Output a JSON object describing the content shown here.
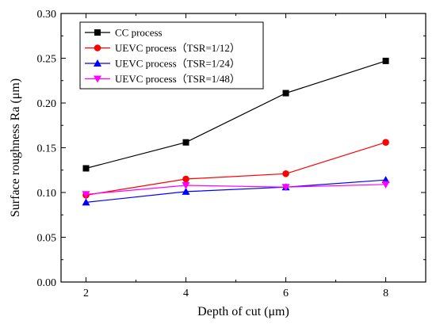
{
  "chart_data": {
    "type": "line",
    "xlabel": "Depth of cut (μm)",
    "ylabel": "Surface roughness Ra (μm)",
    "x": [
      2,
      4,
      6,
      8
    ],
    "xticks": [
      "2",
      "4",
      "6",
      "8"
    ],
    "xlim": [
      1.5,
      8.8
    ],
    "ylim": [
      0.0,
      0.3
    ],
    "yticks": [
      "0.00",
      "0.05",
      "0.10",
      "0.15",
      "0.20",
      "0.25",
      "0.30"
    ],
    "grid": false,
    "legend_position": "top-left",
    "series": [
      {
        "name": "CC process",
        "values": [
          0.127,
          0.156,
          0.211,
          0.247
        ],
        "color": "#000000",
        "marker": "square"
      },
      {
        "name": "UEVC process（TSR=1/12）",
        "values": [
          0.097,
          0.115,
          0.121,
          0.156
        ],
        "color": "#ff0000",
        "marker": "circle"
      },
      {
        "name": "UEVC process（TSR=1/24）",
        "values": [
          0.089,
          0.101,
          0.106,
          0.114
        ],
        "color": "#0000ff",
        "marker": "triangle-up"
      },
      {
        "name": "UEVC process（TSR=1/48）",
        "values": [
          0.098,
          0.108,
          0.106,
          0.109
        ],
        "color": "#ff00ff",
        "marker": "triangle-down"
      }
    ]
  }
}
